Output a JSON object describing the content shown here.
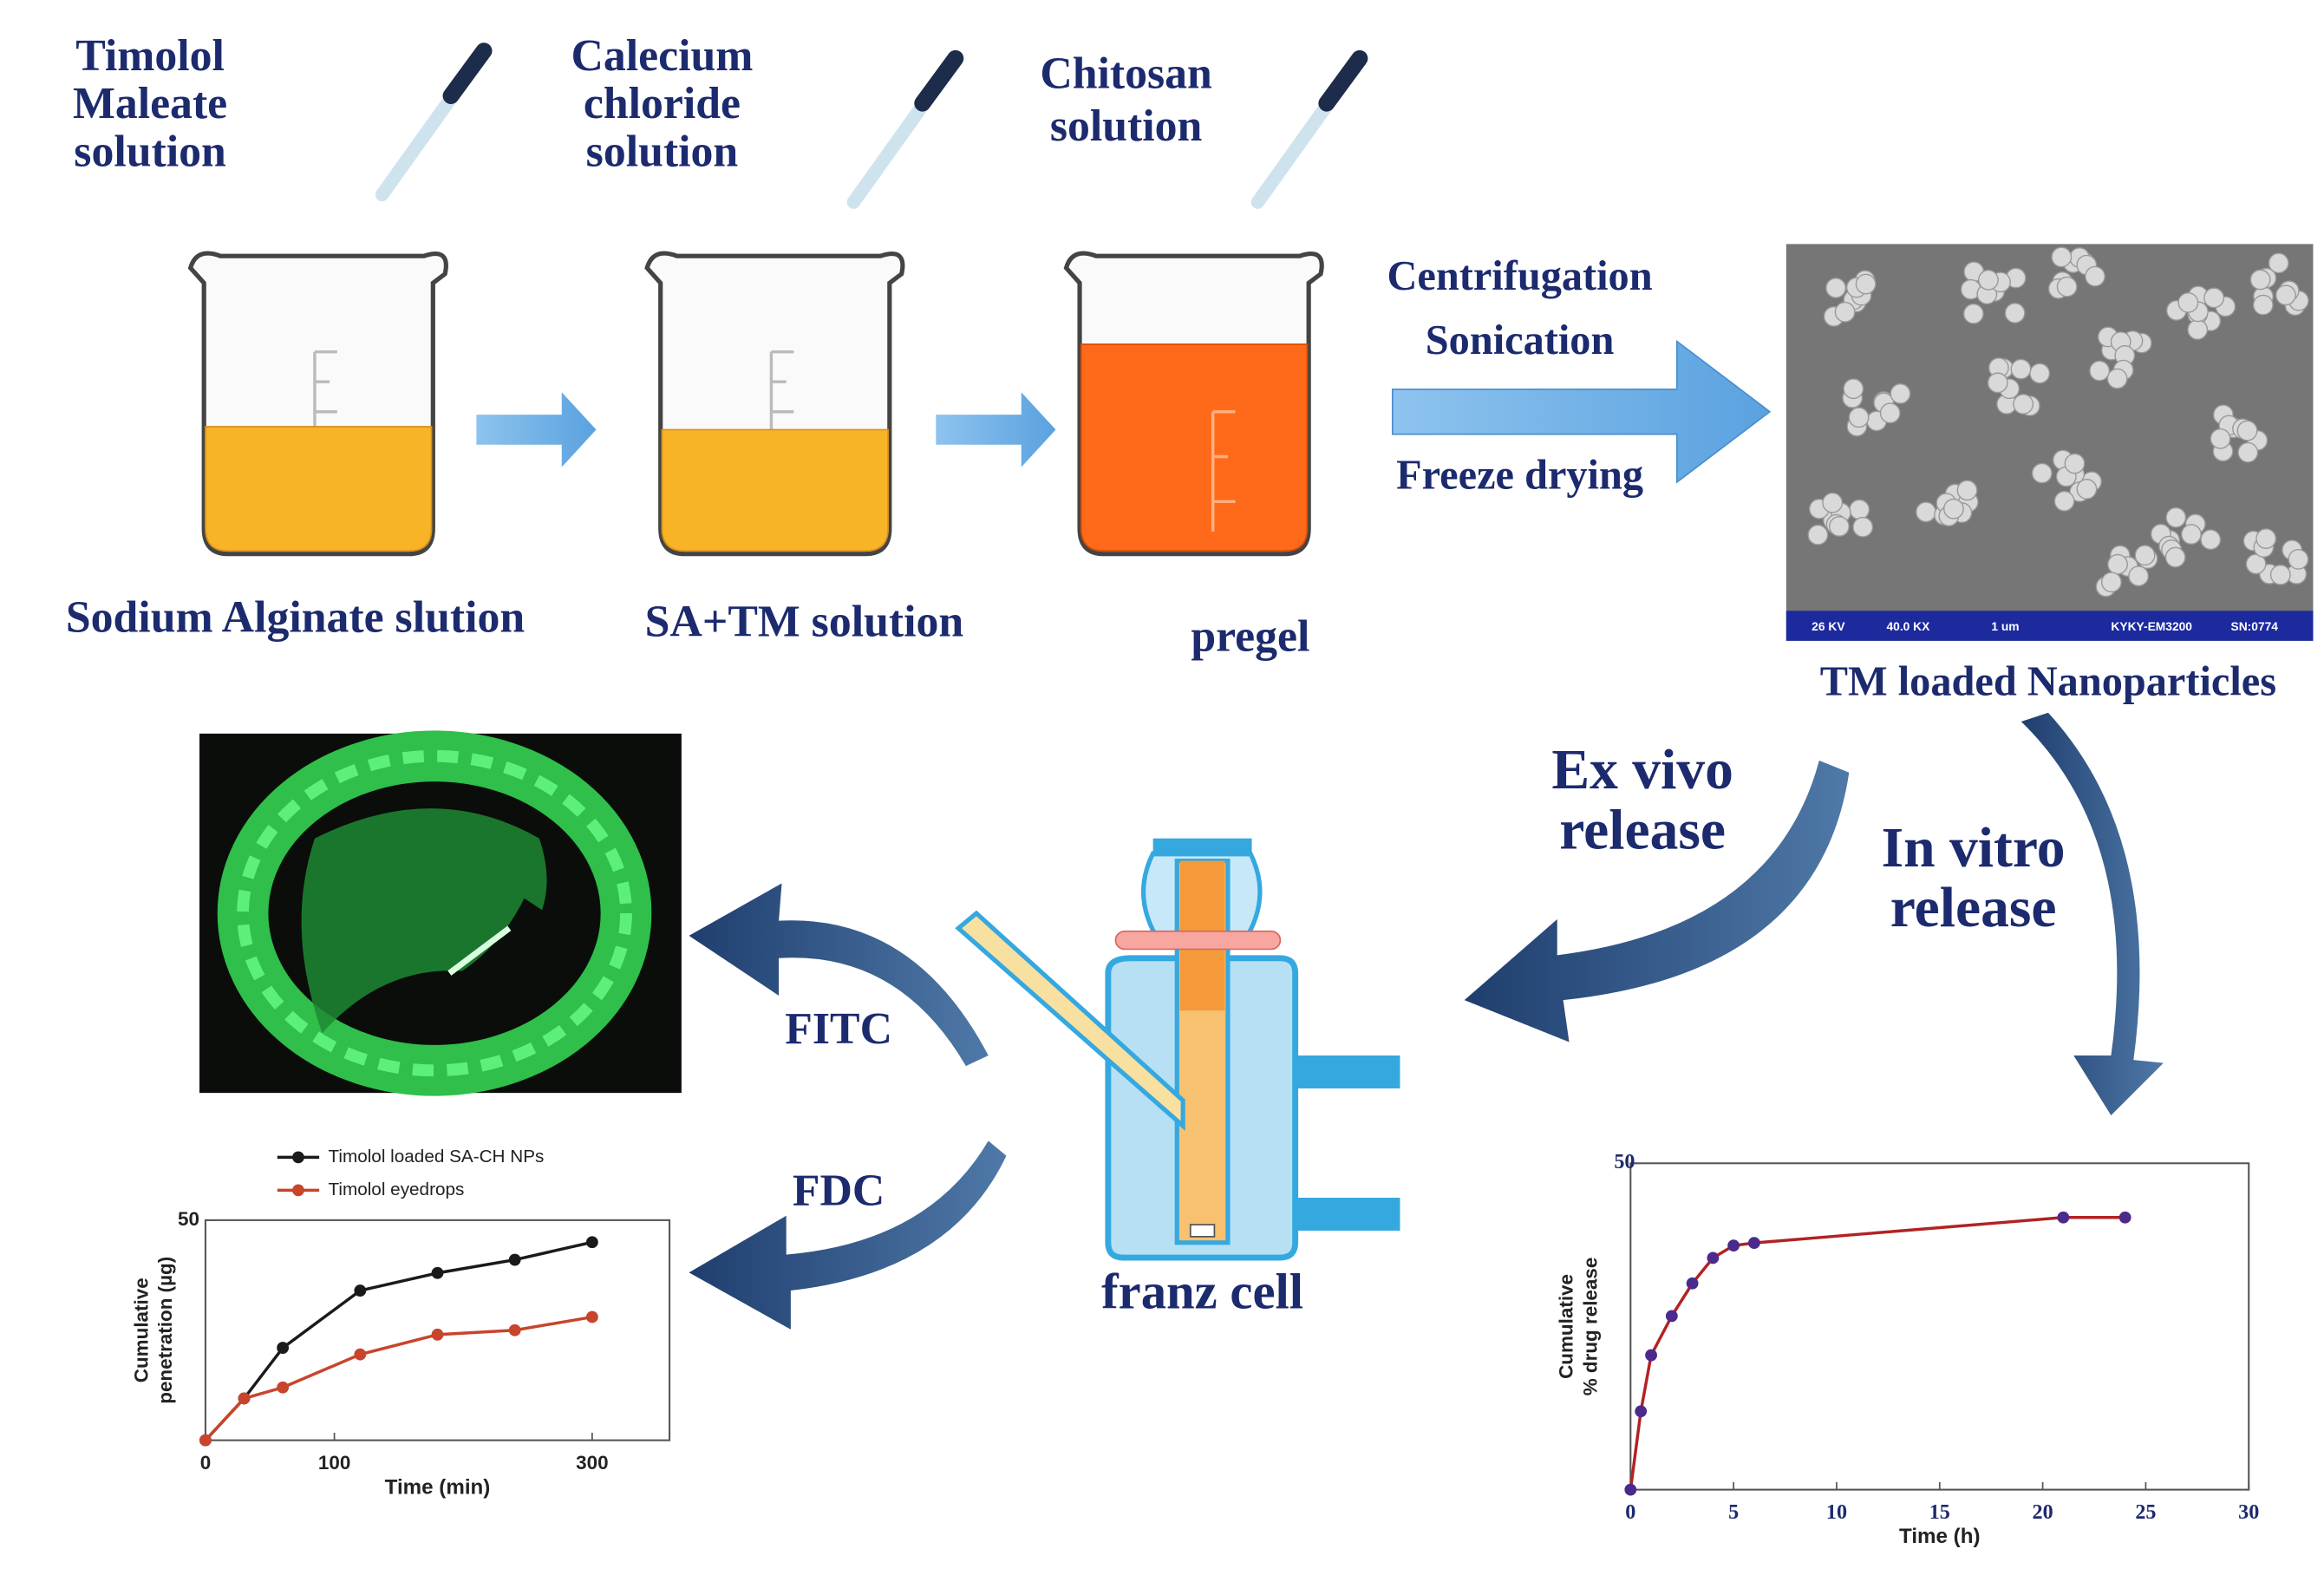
{
  "steps": [
    {
      "reagent": [
        "Timolol",
        "Maleate",
        "solution"
      ],
      "beaker": "Sodium Alginate slution"
    },
    {
      "reagent": [
        "Calecium",
        "chloride",
        "solution"
      ],
      "beaker": "SA+TM solution"
    },
    {
      "reagent": [
        "Chitosan",
        "solution"
      ],
      "beaker": "pregel"
    }
  ],
  "process": [
    "Centrifugation",
    "Sonication",
    "Freeze drying"
  ],
  "sem": {
    "labels": [
      "26 KV",
      "40.0 KX",
      "1 um",
      "KYKY-EM3200",
      "SN:0774"
    ],
    "caption": "TM loaded Nanoparticles"
  },
  "release": {
    "ex_vivo": [
      "Ex vivo",
      "release"
    ],
    "in_vitro": [
      "In vitro",
      "release"
    ]
  },
  "methods": [
    "FITC",
    "FDC"
  ],
  "franz_cell": "franz cell",
  "charts": [
    {
      "type": "line",
      "ylabel": [
        "Cumulative",
        "penetration (µg)"
      ],
      "xlabel": "Time (min)",
      "x": [
        0,
        30,
        60,
        120,
        180,
        240,
        300
      ],
      "series": [
        {
          "name": "Timolol loaded SA-CH NPs",
          "color": "#1a1a1a",
          "values": [
            0,
            9.5,
            21,
            34,
            38,
            41,
            45
          ]
        },
        {
          "name": "Timolol eyedrops",
          "color": "#c8442a",
          "values": [
            0,
            9.5,
            12,
            19.5,
            24,
            25,
            28
          ]
        }
      ],
      "xlim": [
        0,
        360
      ],
      "ylim": [
        0,
        50
      ],
      "xticks": [
        0,
        100,
        300
      ],
      "yticks": [
        50
      ]
    },
    {
      "type": "line",
      "ylabel": [
        "Cumulative",
        "% drug release"
      ],
      "xlabel": "Time (h)",
      "x": [
        0,
        0.5,
        1,
        2,
        3,
        4,
        5,
        6,
        21,
        24
      ],
      "series": [
        {
          "color": "#b22222",
          "marker_color": "#4b2a8c",
          "values": [
            0,
            12,
            20.6,
            26.6,
            31.6,
            35.5,
            37.4,
            37.8,
            41.7,
            41.7
          ]
        }
      ],
      "xlim": [
        0,
        30
      ],
      "ylim": [
        0,
        50
      ],
      "xticks": [
        0,
        5,
        10,
        15,
        20,
        25,
        30
      ],
      "yticks": [
        50
      ]
    }
  ]
}
